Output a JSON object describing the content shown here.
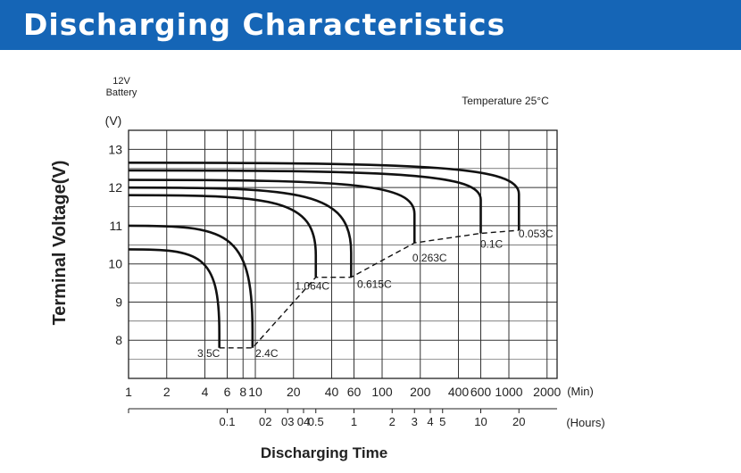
{
  "header": {
    "title": "Discharging Characteristics"
  },
  "chart_data": {
    "type": "line",
    "title": "",
    "battery_label_1": "12V",
    "battery_label_2": "Battery",
    "temperature": "Temperature 25°C",
    "ylabel": "Terminal Voltage(V)",
    "yunit": "(V)",
    "xlabel": "Discharging Time",
    "xunit_min": "(Min)",
    "xunit_hours": "(Hours)",
    "x_scale": "log",
    "xlim_min": [
      1,
      2400
    ],
    "ylim": [
      7,
      13.5
    ],
    "y_ticks": [
      8,
      9,
      10,
      11,
      12,
      13
    ],
    "x_ticks_min": [
      1,
      2,
      4,
      6,
      8,
      10,
      20,
      40,
      60,
      100,
      200,
      400,
      600,
      1000,
      2000
    ],
    "x_ticks_hours": [
      {
        "label": "0.1",
        "min": 6
      },
      {
        "label": "02",
        "min": 12
      },
      {
        "label": "03",
        "min": 18
      },
      {
        "label": "04",
        "min": 24
      },
      {
        "label": "0.5",
        "min": 30
      },
      {
        "label": "1",
        "min": 60
      },
      {
        "label": "2",
        "min": 120
      },
      {
        "label": "3",
        "min": 180
      },
      {
        "label": "4",
        "min": 240
      },
      {
        "label": "5",
        "min": 300
      },
      {
        "label": "10",
        "min": 600
      },
      {
        "label": "20",
        "min": 1200
      }
    ],
    "grid": true,
    "series": [
      {
        "name": "3.5C",
        "start_v": 10.38,
        "end_min": 5.2,
        "end_v": 7.8
      },
      {
        "name": "2.4C",
        "start_v": 11.0,
        "end_min": 9.5,
        "end_v": 7.8
      },
      {
        "name": "1.064C",
        "start_v": 11.8,
        "end_min": 30,
        "end_v": 9.65
      },
      {
        "name": "0.615C",
        "start_v": 12.0,
        "end_min": 57,
        "end_v": 9.65
      },
      {
        "name": "0.263C",
        "start_v": 12.2,
        "end_min": 180,
        "end_v": 10.55
      },
      {
        "name": "0.1C",
        "start_v": 12.45,
        "end_min": 600,
        "end_v": 10.8
      },
      {
        "name": "0.053C",
        "start_v": 12.65,
        "end_min": 1200,
        "end_v": 10.88
      }
    ],
    "cutoff_line": [
      {
        "min": 5.2,
        "v": 7.8
      },
      {
        "min": 9.5,
        "v": 7.8
      },
      {
        "min": 30,
        "v": 9.65
      },
      {
        "min": 57,
        "v": 9.65
      },
      {
        "min": 180,
        "v": 10.55
      },
      {
        "min": 600,
        "v": 10.8
      },
      {
        "min": 1200,
        "v": 10.88
      }
    ]
  }
}
